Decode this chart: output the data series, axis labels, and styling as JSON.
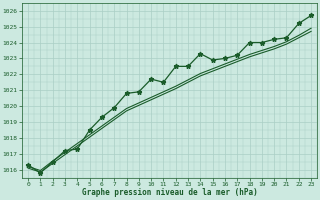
{
  "title": "Graphe pression niveau de la mer (hPa)",
  "background_color": "#cce9e0",
  "grid_color": "#aacfc5",
  "line_color": "#1a5c2a",
  "x_values": [
    0,
    1,
    2,
    3,
    4,
    5,
    6,
    7,
    8,
    9,
    10,
    11,
    12,
    13,
    14,
    15,
    16,
    17,
    18,
    19,
    20,
    21,
    22,
    23
  ],
  "y_main": [
    1016.3,
    1015.8,
    1016.5,
    1017.2,
    1017.3,
    1018.5,
    1019.3,
    1019.9,
    1020.8,
    1020.9,
    1021.7,
    1021.5,
    1022.5,
    1022.5,
    1023.3,
    1022.9,
    1023.0,
    1023.2,
    1024.0,
    1024.0,
    1024.2,
    1024.3,
    1025.2,
    1025.7
  ],
  "y_smooth_low": [
    1016.1,
    1015.85,
    1016.4,
    1016.95,
    1017.5,
    1018.05,
    1018.6,
    1019.15,
    1019.7,
    1020.05,
    1020.4,
    1020.75,
    1021.1,
    1021.5,
    1021.9,
    1022.2,
    1022.5,
    1022.8,
    1023.1,
    1023.35,
    1023.6,
    1023.9,
    1024.3,
    1024.7
  ],
  "y_smooth_high": [
    1016.2,
    1015.95,
    1016.55,
    1017.1,
    1017.65,
    1018.2,
    1018.75,
    1019.3,
    1019.85,
    1020.2,
    1020.55,
    1020.9,
    1021.25,
    1021.65,
    1022.05,
    1022.35,
    1022.65,
    1022.95,
    1023.25,
    1023.5,
    1023.75,
    1024.05,
    1024.45,
    1024.9
  ],
  "ylim": [
    1015.5,
    1026.3
  ],
  "yticks": [
    1016,
    1017,
    1018,
    1019,
    1020,
    1021,
    1022,
    1023,
    1024,
    1025,
    1026
  ],
  "xlim": [
    -0.5,
    23.5
  ],
  "xticks": [
    0,
    1,
    2,
    3,
    4,
    5,
    6,
    7,
    8,
    9,
    10,
    11,
    12,
    13,
    14,
    15,
    16,
    17,
    18,
    19,
    20,
    21,
    22,
    23
  ]
}
